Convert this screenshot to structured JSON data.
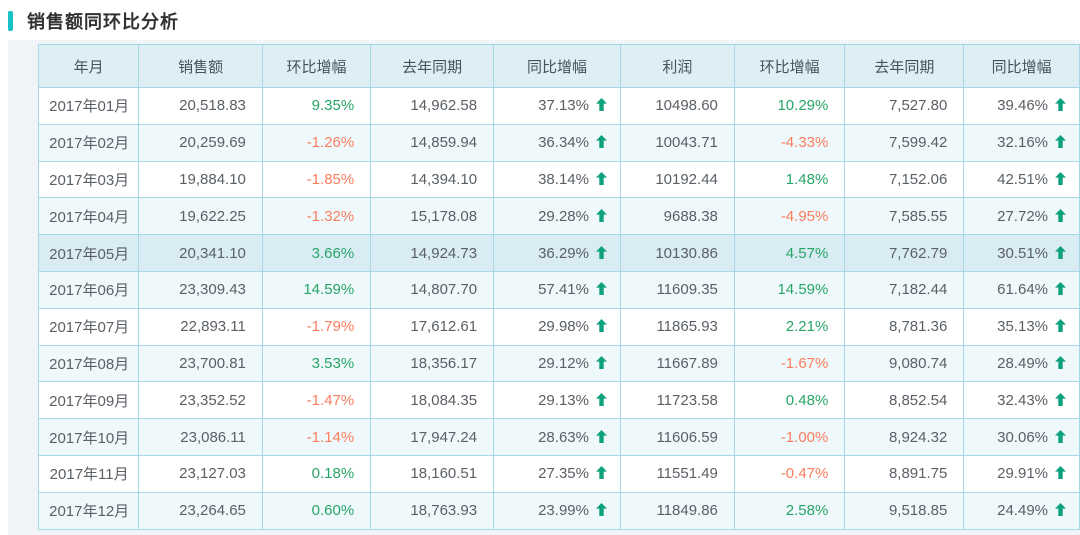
{
  "page": {
    "title": "销售额同环比分析"
  },
  "colors": {
    "accent": "#16c2c5",
    "positive": "#27a567",
    "negative": "#fa7d5e",
    "arrow": "#0ea17d"
  },
  "table": {
    "highlight_index": 4,
    "columns": [
      {
        "key": "month",
        "label": "年月",
        "type": "text"
      },
      {
        "key": "sales",
        "label": "销售额",
        "type": "number"
      },
      {
        "key": "sales_mom",
        "label": "环比增幅",
        "type": "mom"
      },
      {
        "key": "sales_ly",
        "label": "去年同期",
        "type": "number"
      },
      {
        "key": "sales_yoy",
        "label": "同比增幅",
        "type": "yoy"
      },
      {
        "key": "profit",
        "label": "利润",
        "type": "number"
      },
      {
        "key": "profit_mom",
        "label": "环比增幅",
        "type": "mom"
      },
      {
        "key": "profit_ly",
        "label": "去年同期",
        "type": "number"
      },
      {
        "key": "profit_yoy",
        "label": "同比增幅",
        "type": "yoy"
      }
    ],
    "rows": [
      {
        "month": "2017年01月",
        "sales": "20,518.83",
        "sales_mom": "9.35%",
        "sales_ly": "14,962.58",
        "sales_yoy": "37.13%",
        "profit": "10498.60",
        "profit_mom": "10.29%",
        "profit_ly": "7,527.80",
        "profit_yoy": "39.46%"
      },
      {
        "month": "2017年02月",
        "sales": "20,259.69",
        "sales_mom": "-1.26%",
        "sales_ly": "14,859.94",
        "sales_yoy": "36.34%",
        "profit": "10043.71",
        "profit_mom": "-4.33%",
        "profit_ly": "7,599.42",
        "profit_yoy": "32.16%"
      },
      {
        "month": "2017年03月",
        "sales": "19,884.10",
        "sales_mom": "-1.85%",
        "sales_ly": "14,394.10",
        "sales_yoy": "38.14%",
        "profit": "10192.44",
        "profit_mom": "1.48%",
        "profit_ly": "7,152.06",
        "profit_yoy": "42.51%"
      },
      {
        "month": "2017年04月",
        "sales": "19,622.25",
        "sales_mom": "-1.32%",
        "sales_ly": "15,178.08",
        "sales_yoy": "29.28%",
        "profit": "9688.38",
        "profit_mom": "-4.95%",
        "profit_ly": "7,585.55",
        "profit_yoy": "27.72%"
      },
      {
        "month": "2017年05月",
        "sales": "20,341.10",
        "sales_mom": "3.66%",
        "sales_ly": "14,924.73",
        "sales_yoy": "36.29%",
        "profit": "10130.86",
        "profit_mom": "4.57%",
        "profit_ly": "7,762.79",
        "profit_yoy": "30.51%"
      },
      {
        "month": "2017年06月",
        "sales": "23,309.43",
        "sales_mom": "14.59%",
        "sales_ly": "14,807.70",
        "sales_yoy": "57.41%",
        "profit": "11609.35",
        "profit_mom": "14.59%",
        "profit_ly": "7,182.44",
        "profit_yoy": "61.64%"
      },
      {
        "month": "2017年07月",
        "sales": "22,893.11",
        "sales_mom": "-1.79%",
        "sales_ly": "17,612.61",
        "sales_yoy": "29.98%",
        "profit": "11865.93",
        "profit_mom": "2.21%",
        "profit_ly": "8,781.36",
        "profit_yoy": "35.13%"
      },
      {
        "month": "2017年08月",
        "sales": "23,700.81",
        "sales_mom": "3.53%",
        "sales_ly": "18,356.17",
        "sales_yoy": "29.12%",
        "profit": "11667.89",
        "profit_mom": "-1.67%",
        "profit_ly": "9,080.74",
        "profit_yoy": "28.49%"
      },
      {
        "month": "2017年09月",
        "sales": "23,352.52",
        "sales_mom": "-1.47%",
        "sales_ly": "18,084.35",
        "sales_yoy": "29.13%",
        "profit": "11723.58",
        "profit_mom": "0.48%",
        "profit_ly": "8,852.54",
        "profit_yoy": "32.43%"
      },
      {
        "month": "2017年10月",
        "sales": "23,086.11",
        "sales_mom": "-1.14%",
        "sales_ly": "17,947.24",
        "sales_yoy": "28.63%",
        "profit": "11606.59",
        "profit_mom": "-1.00%",
        "profit_ly": "8,924.32",
        "profit_yoy": "30.06%"
      },
      {
        "month": "2017年11月",
        "sales": "23,127.03",
        "sales_mom": "0.18%",
        "sales_ly": "18,160.51",
        "sales_yoy": "27.35%",
        "profit": "11551.49",
        "profit_mom": "-0.47%",
        "profit_ly": "8,891.75",
        "profit_yoy": "29.91%"
      },
      {
        "month": "2017年12月",
        "sales": "23,264.65",
        "sales_mom": "0.60%",
        "sales_ly": "18,763.93",
        "sales_yoy": "23.99%",
        "profit": "11849.86",
        "profit_mom": "2.58%",
        "profit_ly": "9,518.85",
        "profit_yoy": "24.49%"
      }
    ]
  }
}
